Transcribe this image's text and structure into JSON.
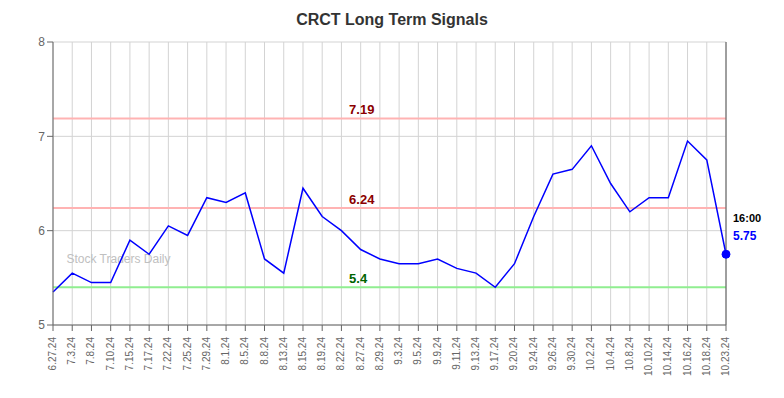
{
  "chart_data": {
    "type": "line",
    "title": "CRCT Long Term Signals",
    "categories": [
      "6.27.24",
      "7.3.24",
      "7.8.24",
      "7.10.24",
      "7.15.24",
      "7.17.24",
      "7.22.24",
      "7.25.24",
      "7.29.24",
      "8.1.24",
      "8.5.24",
      "8.8.24",
      "8.13.24",
      "8.15.24",
      "8.19.24",
      "8.22.24",
      "8.27.24",
      "8.29.24",
      "9.3.24",
      "9.5.24",
      "9.9.24",
      "9.11.24",
      "9.13.24",
      "9.17.24",
      "9.20.24",
      "9.24.24",
      "9.26.24",
      "9.30.24",
      "10.2.24",
      "10.4.24",
      "10.8.24",
      "10.10.24",
      "10.14.24",
      "10.16.24",
      "10.18.24",
      "10.23.24"
    ],
    "values": [
      5.35,
      5.55,
      5.45,
      5.45,
      5.9,
      5.75,
      6.05,
      5.95,
      6.35,
      6.3,
      6.4,
      5.7,
      5.55,
      6.45,
      6.15,
      6.0,
      5.8,
      5.7,
      5.65,
      5.65,
      5.7,
      5.6,
      5.55,
      5.4,
      5.65,
      6.15,
      6.6,
      6.65,
      6.9,
      6.5,
      6.2,
      6.35,
      6.35,
      6.95,
      6.75,
      5.75
    ],
    "color": "blue",
    "ylim": [
      5.0,
      8.0
    ],
    "yticks": [
      5,
      6,
      7,
      8
    ],
    "grid": true,
    "hlines": [
      {
        "value": 7.19,
        "color": "#ffb3b3",
        "label_color": "darkred"
      },
      {
        "value": 6.24,
        "color": "#ffb3b3",
        "label_color": "darkred"
      },
      {
        "value": 5.4,
        "color": "#90ee90",
        "label_color": "darkgreen"
      }
    ],
    "vline": "10.23.24",
    "last_point": {
      "label": "16:00",
      "value": 5.75,
      "color": "blue"
    },
    "watermark": "Stock Traders Daily",
    "watermark_color": "#c0c0c0"
  }
}
